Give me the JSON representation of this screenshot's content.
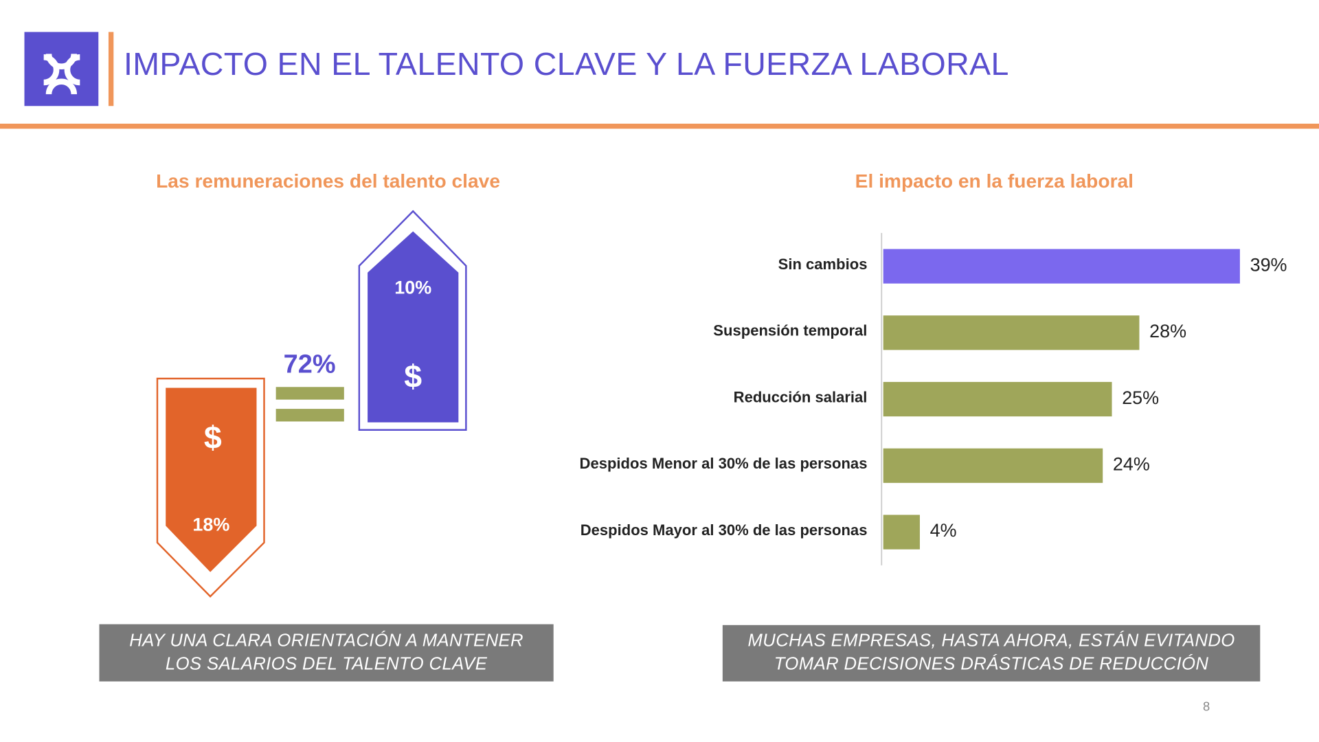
{
  "header": {
    "title": "IMPACTO EN EL TALENTO CLAVE Y LA FUERZA LABORAL"
  },
  "left": {
    "subtitle": "Las remuneraciones del talento clave",
    "down_pct": "18%",
    "down_symbol": "$",
    "equal_pct": "72%",
    "up_pct": "10%",
    "up_symbol": "$",
    "callout_line1": "HAY UNA CLARA ORIENTACIÓN A MANTENER",
    "callout_line2": "LOS SALARIOS DEL TALENTO CLAVE"
  },
  "right": {
    "subtitle": "El impacto en la fuerza laboral",
    "callout_line1": "MUCHAS EMPRESAS, HASTA AHORA, ESTÁN EVITANDO",
    "callout_line2": "TOMAR DECISIONES DRÁSTICAS DE REDUCCIÓN"
  },
  "chart_data": {
    "type": "bar",
    "orientation": "horizontal",
    "title": "El impacto en la fuerza laboral",
    "categories": [
      "Sin cambios",
      "Suspensión temporal",
      "Reducción salarial",
      "Despidos Menor al 30% de las personas",
      "Despidos Mayor al 30% de las personas"
    ],
    "values": [
      39,
      28,
      25,
      24,
      4
    ],
    "value_labels": [
      "39%",
      "28%",
      "25%",
      "24%",
      "4%"
    ],
    "colors": [
      "#7b68ee",
      "#9fa65a",
      "#9fa65a",
      "#9fa65a",
      "#9fa65a"
    ],
    "xlim": [
      0,
      40
    ],
    "grid": false
  },
  "colors": {
    "purple": "#5a4fcf",
    "orange": "#e2642a",
    "olive": "#9fa65a",
    "accent": "#f0965a",
    "callout": "#7a7a7a"
  },
  "footer": {
    "page_number": "8"
  }
}
